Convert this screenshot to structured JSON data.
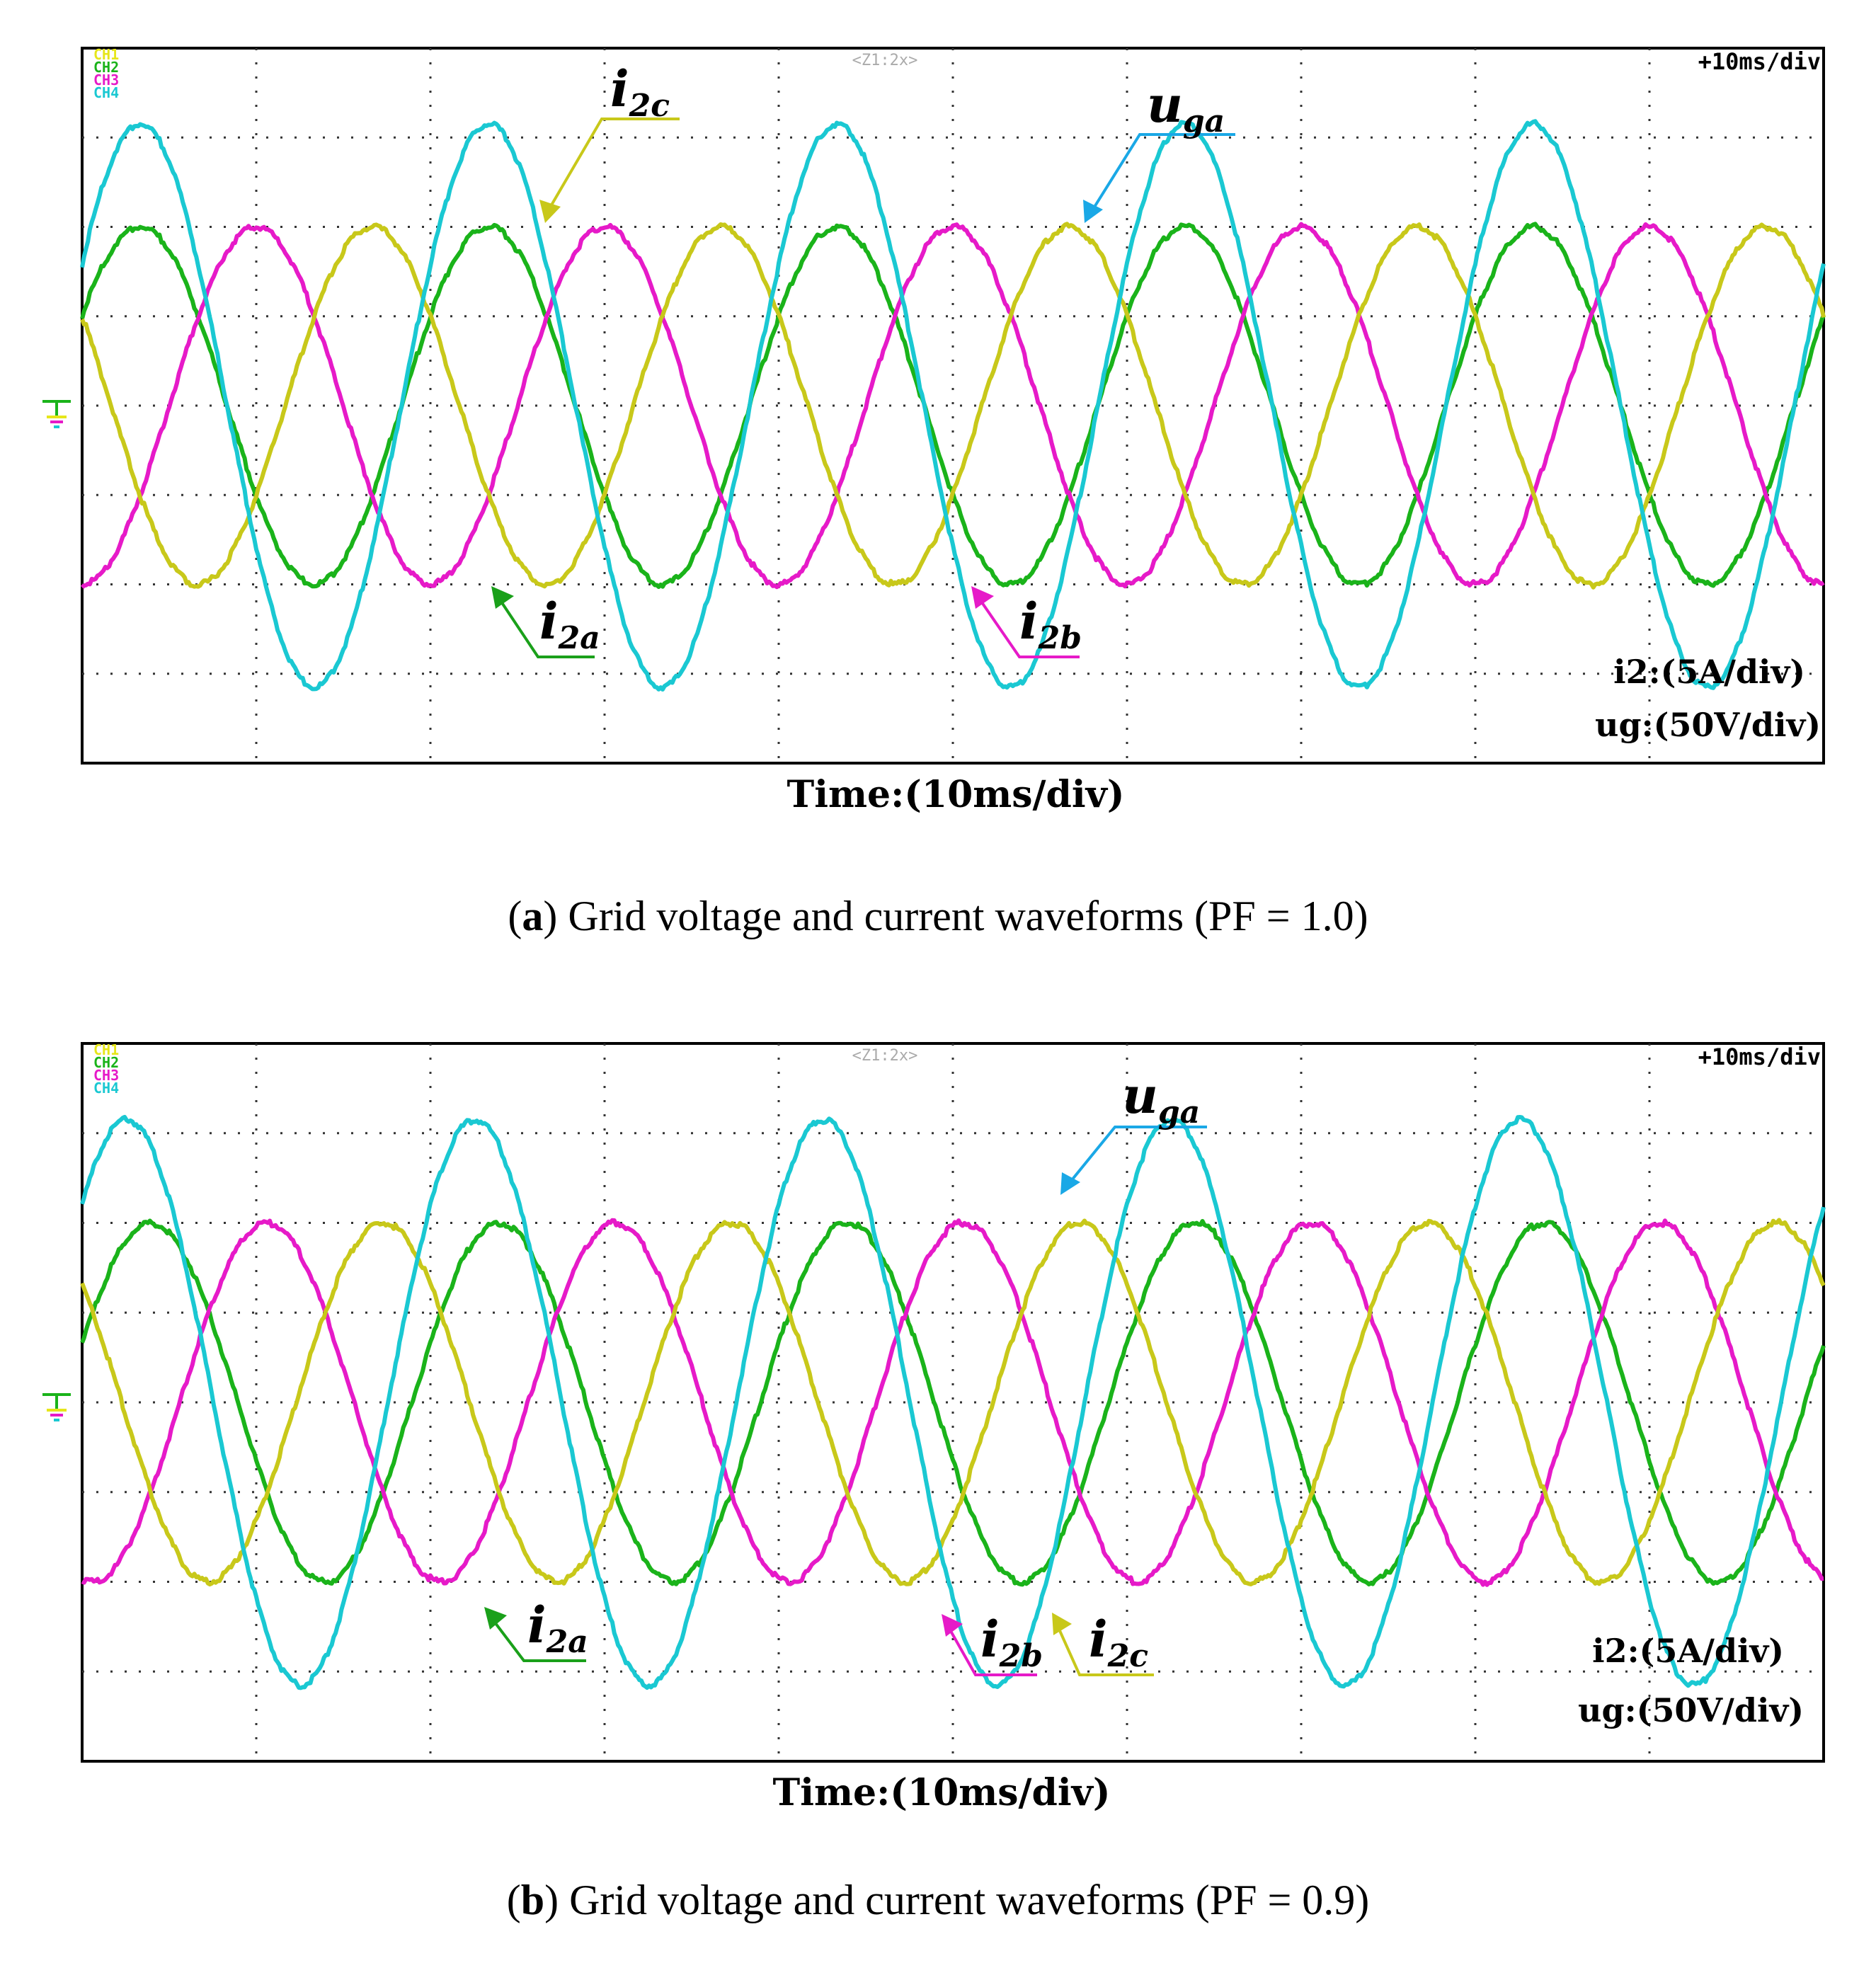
{
  "chart_data": [
    {
      "panel_letter": "a",
      "type": "line",
      "caption": "Grid voltage and current waveforms (PF = 1.0)",
      "channel_labels": [
        "CH1",
        "CH2",
        "CH3",
        "CH4"
      ],
      "top_marker": "<Z1:2x>",
      "timebase": "+10ms/div",
      "xlabel": "Time:(10ms/div)",
      "scale_current": "i2:(5A/div)",
      "scale_voltage": "ug:(50V/div)",
      "x_range_ms": [
        0,
        100
      ],
      "y_range_div": [
        -4,
        4
      ],
      "series": [
        {
          "name": "i2a",
          "color": "#1ab31a",
          "amplitude_div": 2.0,
          "frequency_hz": 50,
          "phase_deg": 30
        },
        {
          "name": "i2b",
          "color": "#e61ac8",
          "amplitude_div": 2.0,
          "frequency_hz": 50,
          "phase_deg": -90
        },
        {
          "name": "i2c",
          "color": "#c8c81a",
          "amplitude_div": 2.0,
          "frequency_hz": 50,
          "phase_deg": 150
        },
        {
          "name": "uga",
          "color": "#1ac8d2",
          "amplitude_div": 3.15,
          "frequency_hz": 50,
          "phase_deg": 30
        }
      ],
      "annotations": [
        {
          "base": "i",
          "sub": "2c",
          "color": "#c8c81a"
        },
        {
          "base": "u",
          "sub": "ga",
          "color": "#1aa8e6"
        },
        {
          "base": "i",
          "sub": "2a",
          "color": "#1aa01a"
        },
        {
          "base": "i",
          "sub": "2b",
          "color": "#e61ac8"
        }
      ]
    },
    {
      "panel_letter": "b",
      "type": "line",
      "caption": "Grid voltage and current waveforms (PF = 0.9)",
      "channel_labels": [
        "CH1",
        "CH2",
        "CH3",
        "CH4"
      ],
      "top_marker": "<Z1:2x>",
      "timebase": "+10ms/div",
      "xlabel": "Time:(10ms/div)",
      "scale_current": "i2:(5A/div)",
      "scale_voltage": "ug:(50V/div)",
      "x_range_ms": [
        0,
        100
      ],
      "y_range_div": [
        -4,
        4
      ],
      "series": [
        {
          "name": "i2a",
          "color": "#1ab31a",
          "amplitude_div": 2.0,
          "frequency_hz": 50,
          "phase_deg": 19
        },
        {
          "name": "i2b",
          "color": "#e61ac8",
          "amplitude_div": 2.0,
          "frequency_hz": 50,
          "phase_deg": -101
        },
        {
          "name": "i2c",
          "color": "#c8c81a",
          "amplitude_div": 2.0,
          "frequency_hz": 50,
          "phase_deg": 139
        },
        {
          "name": "uga",
          "color": "#1ac8d2",
          "amplitude_div": 3.15,
          "frequency_hz": 50,
          "phase_deg": 44
        }
      ],
      "annotations": [
        {
          "base": "u",
          "sub": "ga",
          "color": "#1aa8e6"
        },
        {
          "base": "i",
          "sub": "2a",
          "color": "#1aa01a"
        },
        {
          "base": "i",
          "sub": "2b",
          "color": "#e61ac8"
        },
        {
          "base": "i",
          "sub": "2c",
          "color": "#c8c81a"
        }
      ]
    }
  ]
}
